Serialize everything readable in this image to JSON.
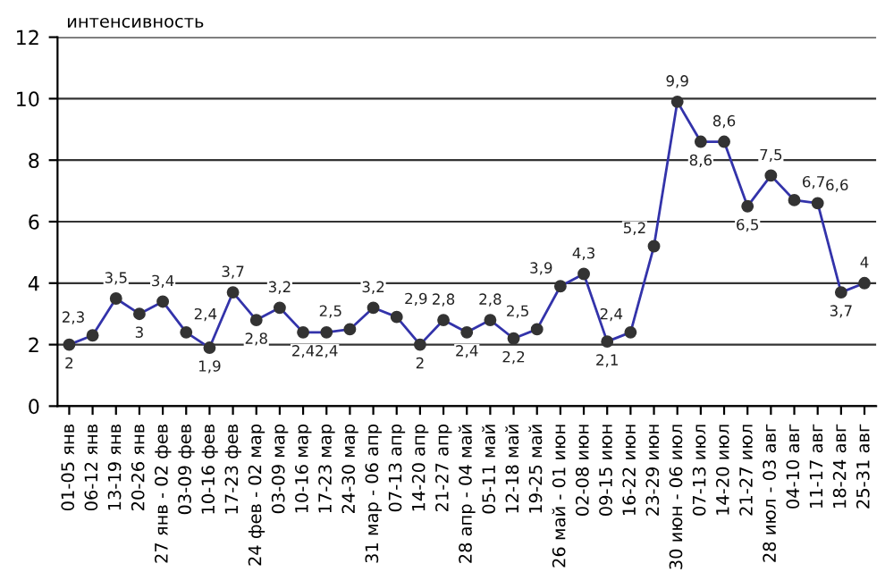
{
  "chart_data": {
    "type": "line",
    "ylabel": "интенсивность",
    "categories": [
      "01-05 янв",
      "06-12 янв",
      "13-19 янв",
      "20-26 янв",
      "27 янв - 02 фев",
      "03-09 фев",
      "10-16 фев",
      "17-23 фев",
      "24 фев - 02 мар",
      "03-09 мар",
      "10-16 мар",
      "17-23 мар",
      "24-30 мар",
      "31 мар - 06 апр",
      "07-13 апр",
      "14-20 апр",
      "21-27 апр",
      "28 апр - 04 май",
      "05-11 май",
      "12-18 май",
      "19-25 май",
      "26 май - 01 июн",
      "02-08 июн",
      "09-15 июн",
      "16-22 июн",
      "23-29 июн",
      "30 июн - 06 июл",
      "07-13 июл",
      "14-20 июл",
      "21-27 июл",
      "28 июл - 03 авг",
      "04-10 авг",
      "11-17 авг",
      "18-24 авг",
      "25-31 авг"
    ],
    "series": [
      {
        "color": "#3333aa",
        "values": [
          2,
          2.3,
          3.5,
          3,
          3.4,
          2.4,
          1.9,
          3.7,
          2.8,
          3.2,
          2.4,
          2.4,
          2.5,
          3.2,
          2.9,
          2,
          2.8,
          2.4,
          2.8,
          2.2,
          2.5,
          3.9,
          4.3,
          2.1,
          2.4,
          5.2,
          9.9,
          8.6,
          8.6,
          6.5,
          7.5,
          6.7,
          6.6,
          3.7,
          4
        ],
        "value_labels": [
          "2",
          "2,3",
          "3,5",
          "3",
          "3,4",
          "2,4",
          "1,9",
          "3,7",
          "2,8",
          "3,2",
          "2,4",
          "2,4",
          "2,5",
          "3,2",
          "2,9",
          "2",
          "2,8",
          "2,4",
          "2,8",
          "2,2",
          "2,5",
          "3,9",
          "4,3",
          "2,1",
          "2,4",
          "5,2",
          "9,9",
          "8,6",
          "8,6",
          "6,5",
          "7,5",
          "6,7",
          "6,6",
          "3,7",
          "4"
        ]
      }
    ],
    "ylim": [
      0,
      12
    ],
    "yticks": [
      0,
      2,
      4,
      6,
      8,
      10,
      12
    ],
    "grid": "y",
    "marker": "circle",
    "line_style": "solid",
    "legend": false
  }
}
